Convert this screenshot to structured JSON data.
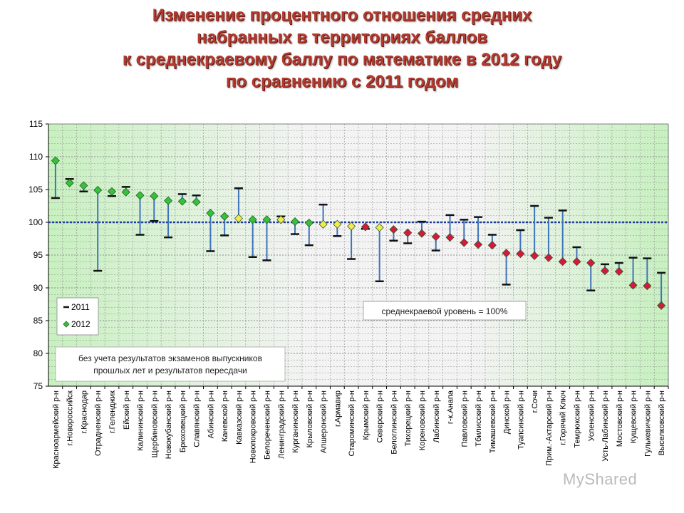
{
  "title": {
    "line1": "Изменение процентного отношения средних",
    "line2": "набранных в территориях баллов",
    "line3": "к среднекраевому баллу по математике в 2012 году",
    "line4": "по сравнению с 2011 годом"
  },
  "watermark": "MyShared",
  "colors": {
    "green_bg": "#c7f0bf",
    "white_bg": "#f3f3f3",
    "grid": "#8c8c8c",
    "whisker": "#3e73b8",
    "ref_line": "#1f3f9e",
    "marker_green": "#34c23a",
    "marker_yellow": "#f3ea4e",
    "marker_red": "#d9173d",
    "marker_stroke": "#2a5a28"
  },
  "chart_data": {
    "type": "dot-range",
    "title": "Изменение процентного отношения средних набранных в территориях баллов к среднекраевому баллу по математике в 2012 году по сравнению с 2011 годом",
    "ylim": [
      75,
      115
    ],
    "yticks": [
      75,
      80,
      85,
      90,
      95,
      100,
      105,
      110,
      115
    ],
    "reference": {
      "value": 100,
      "label": "среднекраевой уровень = 100%"
    },
    "note": [
      "без учета результатов экзаменов выпускников",
      "прошлых лет и результатов пересдачи"
    ],
    "legend": {
      "position": "left",
      "entries": [
        "2011",
        "2012"
      ]
    },
    "categories": [
      "Красноармейский р-н",
      "г.Новороссийск",
      "г.Краснодар",
      "Отрадненский р-н",
      "г.Геленджик",
      "Ейский р-н",
      "Калининский р-н",
      "Щербиновский р-н",
      "Новокубанский р-н",
      "Брюховецкий р-н",
      "Славянский р-н",
      "Абинский р-н",
      "Каневской р-н",
      "Кавказский р-н",
      "Новопокровский р-н",
      "Белореченский р-н",
      "Ленинградский р-н",
      "Курганинский р-н",
      "Крыловский р-н",
      "Апшеронский р-н",
      "г.Армавир",
      "Староминский р-н",
      "Крымский р-н",
      "Северский р-н",
      "Белоглинский р-н",
      "Тихорецкий р-н",
      "Кореновский р-н",
      "Лабинский р-н",
      "г-к.Анапа",
      "Павловский р-н",
      "Тбилисский р-н",
      "Тимашевский р-н",
      "Динской р-н",
      "Туапсинский р-н",
      "г.Сочи",
      "Прим.-Ахтарский р-н",
      "г.Горячий Ключ",
      "Темрюкский р-н",
      "Успенский р-н",
      "Усть-Лабинский р-н",
      "Мостовский р-н",
      "Кущевский р-н",
      "Гулькевичский р-н",
      "Выселковский р-н"
    ],
    "series": [
      {
        "name": "2011",
        "values": [
          103.7,
          106.6,
          104.7,
          92.6,
          104.0,
          105.4,
          98.1,
          100.2,
          97.7,
          104.3,
          104.1,
          95.6,
          98.0,
          105.2,
          94.7,
          94.2,
          100.9,
          98.2,
          96.5,
          102.7,
          97.9,
          94.4,
          99.0,
          91.0,
          97.2,
          96.8,
          100.1,
          95.7,
          101.1,
          100.4,
          100.8,
          98.1,
          90.5,
          98.8,
          102.5,
          100.7,
          101.8,
          96.2,
          89.6,
          93.6,
          93.8,
          94.6,
          94.5,
          92.3
        ]
      },
      {
        "name": "2012",
        "values": [
          109.4,
          106.0,
          105.6,
          104.9,
          104.7,
          104.6,
          104.1,
          104.0,
          103.3,
          103.2,
          103.1,
          101.4,
          100.9,
          100.6,
          100.4,
          100.4,
          100.4,
          100.1,
          99.9,
          99.7,
          99.7,
          99.4,
          99.3,
          99.2,
          98.9,
          98.4,
          98.3,
          97.8,
          97.7,
          96.9,
          96.6,
          96.5,
          95.3,
          95.2,
          94.9,
          94.6,
          94.0,
          94.0,
          93.8,
          92.6,
          92.5,
          90.4,
          90.3,
          87.3
        ]
      }
    ],
    "marker_colors": [
      "green",
      "green",
      "green",
      "green",
      "green",
      "green",
      "green",
      "green",
      "green",
      "green",
      "green",
      "green",
      "green",
      "yellow",
      "green",
      "green",
      "yellow",
      "green",
      "green",
      "yellow",
      "yellow",
      "yellow",
      "red",
      "yellow",
      "red",
      "red",
      "red",
      "red",
      "red",
      "red",
      "red",
      "red",
      "red",
      "red",
      "red",
      "red",
      "red",
      "red",
      "red",
      "red",
      "red",
      "red",
      "red",
      "red"
    ]
  }
}
